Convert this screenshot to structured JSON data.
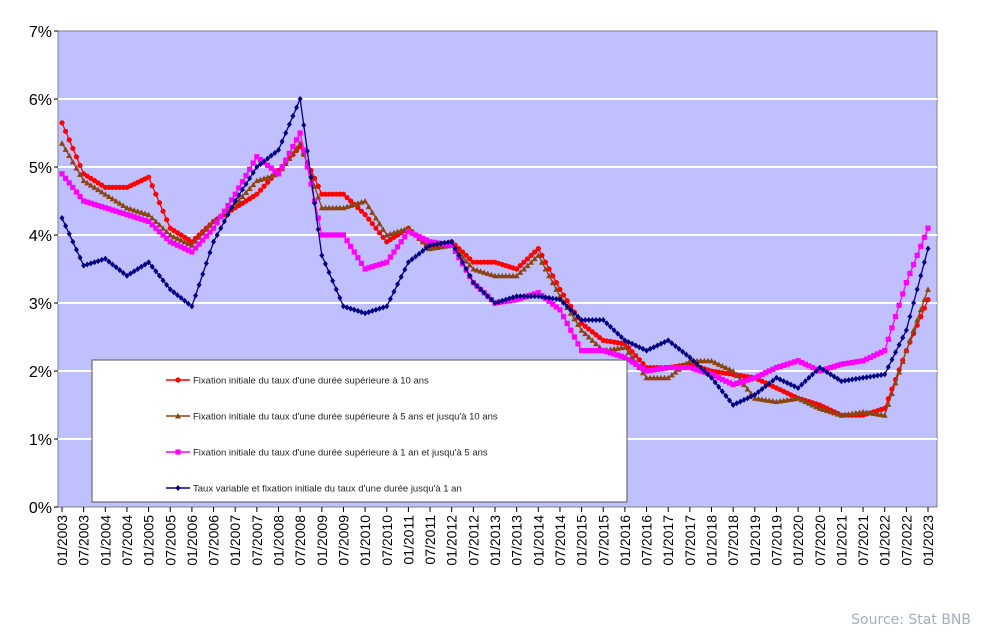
{
  "chart_data": {
    "type": "line",
    "title": "",
    "xlabel": "",
    "ylabel": "",
    "ylim": [
      0,
      7
    ],
    "y_ticks": [
      "0%",
      "1%",
      "2%",
      "3%",
      "4%",
      "5%",
      "6%",
      "7%"
    ],
    "grid": true,
    "legend_placement": "bottom-left inside",
    "x_ticks": [
      "01/2003",
      "07/2003",
      "01/2004",
      "07/2004",
      "01/2005",
      "07/2005",
      "01/2006",
      "07/2006",
      "01/2007",
      "07/2007",
      "01/2008",
      "07/2008",
      "01/2009",
      "07/2009",
      "01/2010",
      "07/2010",
      "01/2011",
      "07/2011",
      "01/2012",
      "07/2012",
      "01/2013",
      "07/2013",
      "01/2014",
      "07/2014",
      "01/2015",
      "07/2015",
      "01/2016",
      "07/2016",
      "01/2017",
      "07/2017",
      "01/2018",
      "07/2018",
      "01/2019",
      "07/2019",
      "01/2020",
      "07/2020",
      "01/2021",
      "07/2021",
      "01/2022",
      "07/2022",
      "01/2023"
    ],
    "x": [
      "01/2003",
      "07/2003",
      "01/2004",
      "07/2004",
      "01/2005",
      "07/2005",
      "01/2006",
      "07/2006",
      "01/2007",
      "07/2007",
      "01/2008",
      "07/2008",
      "01/2009",
      "07/2009",
      "01/2010",
      "07/2010",
      "01/2011",
      "07/2011",
      "01/2012",
      "07/2012",
      "01/2013",
      "07/2013",
      "01/2014",
      "07/2014",
      "01/2015",
      "07/2015",
      "01/2016",
      "07/2016",
      "01/2017",
      "07/2017",
      "01/2018",
      "07/2018",
      "01/2019",
      "07/2019",
      "01/2020",
      "07/2020",
      "01/2021",
      "07/2021",
      "01/2022",
      "07/2022",
      "01/2023"
    ],
    "series": [
      {
        "name": "Fixation initiale du taux d'une durée supérieure à 10 ans",
        "color": "#ff0000",
        "marker": "circle",
        "values": [
          5.65,
          4.9,
          4.7,
          4.7,
          4.85,
          4.1,
          3.9,
          4.2,
          4.4,
          4.6,
          4.95,
          5.3,
          4.6,
          4.6,
          4.3,
          3.9,
          4.1,
          3.8,
          3.9,
          3.6,
          3.6,
          3.5,
          3.8,
          3.2,
          2.7,
          2.45,
          2.4,
          2.05,
          2.05,
          2.1,
          2.0,
          1.95,
          1.9,
          1.75,
          1.6,
          1.5,
          1.35,
          1.35,
          1.45,
          2.3,
          3.05
        ]
      },
      {
        "name": "Fixation initiale du taux d'une durée supérieure à 5 ans et  jusqu'à 10 ans",
        "color": "#8b4513",
        "marker": "triangle",
        "values": [
          5.35,
          4.8,
          4.6,
          4.4,
          4.3,
          4.0,
          3.85,
          4.2,
          4.45,
          4.8,
          4.9,
          5.35,
          4.4,
          4.4,
          4.5,
          4.0,
          4.1,
          3.8,
          3.85,
          3.5,
          3.4,
          3.4,
          3.7,
          3.1,
          2.6,
          2.3,
          2.35,
          1.9,
          1.9,
          2.15,
          2.15,
          2.0,
          1.6,
          1.55,
          1.6,
          1.45,
          1.35,
          1.4,
          1.35,
          2.3,
          3.2
        ]
      },
      {
        "name": "Fixation initiale du taux d'une durée supérieure à 1 an et  jusqu'à 5 ans",
        "color": "#ff00ff",
        "marker": "square",
        "values": [
          4.9,
          4.5,
          4.4,
          4.3,
          4.2,
          3.9,
          3.75,
          4.1,
          4.6,
          5.15,
          4.9,
          5.5,
          4.0,
          4.0,
          3.5,
          3.6,
          4.05,
          3.9,
          3.85,
          3.3,
          3.0,
          3.05,
          3.15,
          2.9,
          2.3,
          2.3,
          2.2,
          2.0,
          2.05,
          2.05,
          1.95,
          1.8,
          1.9,
          2.05,
          2.15,
          2.0,
          2.1,
          2.15,
          2.3,
          3.3,
          4.1
        ]
      },
      {
        "name": "Taux variable et fixation initiale du taux d'une durée jusqu'à 1 an",
        "color": "#000080",
        "marker": "diamond",
        "values": [
          4.25,
          3.55,
          3.65,
          3.4,
          3.6,
          3.2,
          2.95,
          3.9,
          4.5,
          5.0,
          5.25,
          6.0,
          3.7,
          2.95,
          2.85,
          2.95,
          3.6,
          3.85,
          3.9,
          3.3,
          3.0,
          3.1,
          3.1,
          3.05,
          2.75,
          2.75,
          2.45,
          2.3,
          2.45,
          2.2,
          1.9,
          1.5,
          1.65,
          1.9,
          1.75,
          2.05,
          1.85,
          1.9,
          1.95,
          2.6,
          3.8
        ]
      }
    ],
    "colors": {
      "plot_background": "#c0c0ff",
      "grid": "#ffffff"
    }
  },
  "source": "Source: Stat BNB"
}
